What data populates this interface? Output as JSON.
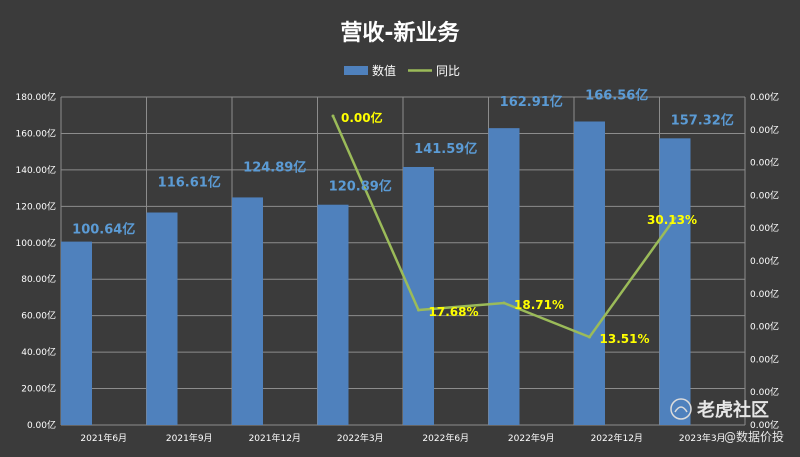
{
  "chart_data": {
    "type": "bar",
    "title": "营收-新业务",
    "categories": [
      "2021年6月",
      "2021年9月",
      "2021年12月",
      "2022年3月",
      "2022年6月",
      "2022年9月",
      "2022年12月",
      "2023年3月"
    ],
    "series": [
      {
        "name": "数值",
        "type": "bar",
        "values": [
          100.64,
          116.61,
          124.89,
          120.89,
          141.59,
          162.91,
          166.56,
          157.32
        ],
        "labels": [
          "100.64亿",
          "116.61亿",
          "124.89亿",
          "120.89亿",
          "141.59亿",
          "162.91亿",
          "166.56亿",
          "157.32亿"
        ]
      },
      {
        "name": "同比",
        "type": "line",
        "axis": "right",
        "values": [
          null,
          null,
          null,
          0.0,
          17.68,
          18.71,
          13.51,
          30.13
        ],
        "labels": [
          "",
          "",
          "",
          "0.00亿",
          "17.68%",
          "18.71%",
          "13.51%",
          "30.13%"
        ]
      }
    ],
    "ylim": [
      0,
      180
    ],
    "yticks": [
      "0.00亿",
      "20.00亿",
      "40.00亿",
      "60.00亿",
      "80.00亿",
      "100.00亿",
      "120.00亿",
      "140.00亿",
      "160.00亿",
      "180.00亿"
    ],
    "y2ticks": [
      "0.00亿",
      "0.00亿",
      "0.00亿",
      "0.00亿",
      "0.00亿",
      "0.00亿",
      "0.00亿",
      "0.00亿",
      "0.00亿",
      "0.00亿",
      "0.00亿"
    ],
    "legend": "top-center",
    "grid": true,
    "colors": {
      "bar": "#4f81bd",
      "line": "#9bbb59",
      "bar_label": "#5b9bd5",
      "line_label": "#ffff00",
      "grid": "#8c8c8c",
      "background": "#3b3b3b"
    }
  },
  "watermark": {
    "brand": "老虎社区",
    "sub": "@数据价投"
  }
}
